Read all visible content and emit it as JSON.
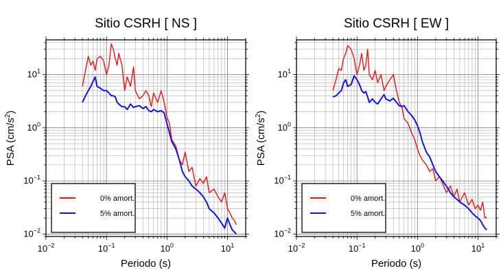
{
  "chart_data": [
    {
      "type": "line",
      "title": "Sitio CSRH [ NS ]",
      "xlabel": "Periodo (s)",
      "ylabel_main": "PSA (cm/s",
      "ylabel_sup": "2",
      "ylabel_close": ")",
      "x_scale": "log",
      "y_scale": "log",
      "xlim": [
        0.01,
        20
      ],
      "ylim": [
        0.009,
        45
      ],
      "grid": true,
      "legend_position": "bottom-left",
      "x_ticks": [
        {
          "base": "10",
          "exp": "−2",
          "value": 0.01
        },
        {
          "base": "10",
          "exp": "−1",
          "value": 0.1
        },
        {
          "base": "10",
          "exp": "0",
          "value": 1
        },
        {
          "base": "10",
          "exp": "1",
          "value": 10
        }
      ],
      "y_ticks": [
        {
          "base": "10",
          "exp": "−2",
          "value": 0.01
        },
        {
          "base": "10",
          "exp": "−1",
          "value": 0.1
        },
        {
          "base": "10",
          "exp": "0",
          "value": 1
        },
        {
          "base": "10",
          "exp": "1",
          "value": 10
        }
      ],
      "series": [
        {
          "name": "0% amort.",
          "color": "#ee1111",
          "x": [
            0.04,
            0.045,
            0.05,
            0.055,
            0.06,
            0.065,
            0.07,
            0.08,
            0.09,
            0.1,
            0.11,
            0.12,
            0.13,
            0.14,
            0.15,
            0.16,
            0.18,
            0.2,
            0.22,
            0.25,
            0.28,
            0.3,
            0.35,
            0.4,
            0.45,
            0.5,
            0.55,
            0.6,
            0.7,
            0.8,
            0.9,
            1.0,
            1.1,
            1.2,
            1.4,
            1.6,
            1.8,
            2.0,
            2.3,
            2.6,
            3.0,
            3.5,
            4.0,
            4.5,
            5,
            6,
            7,
            8,
            9,
            10,
            11,
            12,
            13,
            14
          ],
          "y": [
            6,
            12,
            22,
            15,
            18,
            12,
            20,
            22,
            18,
            10,
            15,
            38,
            30,
            20,
            15,
            25,
            15,
            5,
            9,
            6,
            14,
            5,
            3.5,
            4,
            5,
            4,
            2.5,
            4.5,
            3,
            5,
            3,
            1.6,
            1.2,
            0.6,
            0.45,
            0.25,
            0.2,
            0.35,
            0.15,
            0.18,
            0.08,
            0.11,
            0.09,
            0.12,
            0.06,
            0.07,
            0.05,
            0.04,
            0.06,
            0.03,
            0.025,
            0.02,
            0.018,
            0.015
          ]
        },
        {
          "name": "5% amort.",
          "color": "#1111ee",
          "x": [
            0.04,
            0.045,
            0.05,
            0.055,
            0.06,
            0.065,
            0.07,
            0.08,
            0.09,
            0.1,
            0.11,
            0.12,
            0.13,
            0.14,
            0.15,
            0.16,
            0.18,
            0.2,
            0.22,
            0.25,
            0.28,
            0.3,
            0.35,
            0.4,
            0.45,
            0.5,
            0.55,
            0.6,
            0.7,
            0.8,
            0.9,
            1.0,
            1.1,
            1.2,
            1.4,
            1.6,
            1.8,
            2.0,
            2.3,
            2.6,
            3.0,
            3.5,
            4.0,
            4.5,
            5,
            6,
            7,
            8,
            9,
            10,
            11,
            12,
            13,
            14
          ],
          "y": [
            3,
            4,
            5,
            6,
            7.5,
            9,
            6,
            5.5,
            5,
            5,
            4.5,
            4,
            4,
            3.8,
            3,
            2.8,
            2.5,
            2.5,
            2.2,
            2.8,
            2.4,
            2.5,
            2.6,
            2.3,
            2.5,
            2.1,
            2,
            2.2,
            2,
            2.1,
            1.9,
            1.2,
            0.8,
            0.55,
            0.4,
            0.25,
            0.15,
            0.12,
            0.1,
            0.08,
            0.07,
            0.06,
            0.05,
            0.04,
            0.03,
            0.025,
            0.02,
            0.016,
            0.013,
            0.02,
            0.015,
            0.012,
            0.011,
            0.01
          ]
        }
      ]
    },
    {
      "type": "line",
      "title": "Sitio CSRH [ EW ]",
      "xlabel": "Periodo (s)",
      "ylabel_main": "PSA (cm/s",
      "ylabel_sup": "2",
      "ylabel_close": ")",
      "x_scale": "log",
      "y_scale": "log",
      "xlim": [
        0.01,
        20
      ],
      "ylim": [
        0.009,
        45
      ],
      "grid": true,
      "legend_position": "bottom-left",
      "x_ticks": [
        {
          "base": "10",
          "exp": "−2",
          "value": 0.01
        },
        {
          "base": "10",
          "exp": "−1",
          "value": 0.1
        },
        {
          "base": "10",
          "exp": "0",
          "value": 1
        },
        {
          "base": "10",
          "exp": "1",
          "value": 10
        }
      ],
      "y_ticks": [
        {
          "base": "10",
          "exp": "−2",
          "value": 0.01
        },
        {
          "base": "10",
          "exp": "−1",
          "value": 0.1
        },
        {
          "base": "10",
          "exp": "0",
          "value": 1
        },
        {
          "base": "10",
          "exp": "1",
          "value": 10
        }
      ],
      "series": [
        {
          "name": "0% amort.",
          "color": "#ee1111",
          "x": [
            0.04,
            0.045,
            0.05,
            0.055,
            0.06,
            0.065,
            0.07,
            0.08,
            0.09,
            0.1,
            0.11,
            0.12,
            0.13,
            0.14,
            0.15,
            0.16,
            0.18,
            0.2,
            0.22,
            0.25,
            0.28,
            0.3,
            0.35,
            0.4,
            0.45,
            0.5,
            0.55,
            0.6,
            0.7,
            0.8,
            0.9,
            1.0,
            1.1,
            1.2,
            1.4,
            1.6,
            1.8,
            2.0,
            2.3,
            2.6,
            3.0,
            3.5,
            4.0,
            4.5,
            5,
            6,
            7,
            8,
            9,
            10,
            11,
            12,
            13,
            14
          ],
          "y": [
            5,
            8,
            13,
            12,
            20,
            25,
            35,
            30,
            20,
            10,
            15,
            25,
            12,
            15,
            30,
            10,
            8,
            12,
            7,
            10,
            5,
            6,
            8,
            10,
            5,
            3,
            2.5,
            1.5,
            1.2,
            0.8,
            0.6,
            0.4,
            0.3,
            0.25,
            0.2,
            0.15,
            0.17,
            0.1,
            0.12,
            0.09,
            0.06,
            0.08,
            0.05,
            0.07,
            0.04,
            0.06,
            0.035,
            0.045,
            0.03,
            0.035,
            0.028,
            0.04,
            0.02,
            0.021
          ]
        },
        {
          "name": "5% amort.",
          "color": "#1111ee",
          "x": [
            0.04,
            0.045,
            0.05,
            0.055,
            0.06,
            0.065,
            0.07,
            0.08,
            0.09,
            0.1,
            0.11,
            0.12,
            0.13,
            0.14,
            0.15,
            0.16,
            0.18,
            0.2,
            0.22,
            0.25,
            0.28,
            0.3,
            0.35,
            0.4,
            0.45,
            0.5,
            0.55,
            0.6,
            0.7,
            0.8,
            0.9,
            1.0,
            1.1,
            1.2,
            1.4,
            1.6,
            1.8,
            2.0,
            2.3,
            2.6,
            3.0,
            3.5,
            4.0,
            4.5,
            5,
            6,
            7,
            8,
            9,
            10,
            11,
            12,
            13,
            14
          ],
          "y": [
            3.8,
            4,
            4.5,
            5,
            7,
            8,
            6,
            6.5,
            9.5,
            8,
            6.5,
            5,
            4.5,
            4.8,
            3.8,
            3,
            3.5,
            3,
            2.8,
            3.5,
            4.2,
            3.5,
            3.2,
            3.6,
            3,
            2.6,
            2.5,
            2.6,
            2,
            1.7,
            1.4,
            1.1,
            0.8,
            0.55,
            0.35,
            0.28,
            0.2,
            0.15,
            0.12,
            0.1,
            0.08,
            0.06,
            0.05,
            0.045,
            0.04,
            0.035,
            0.03,
            0.025,
            0.022,
            0.02,
            0.018,
            0.015,
            0.013,
            0.012
          ]
        }
      ]
    }
  ]
}
